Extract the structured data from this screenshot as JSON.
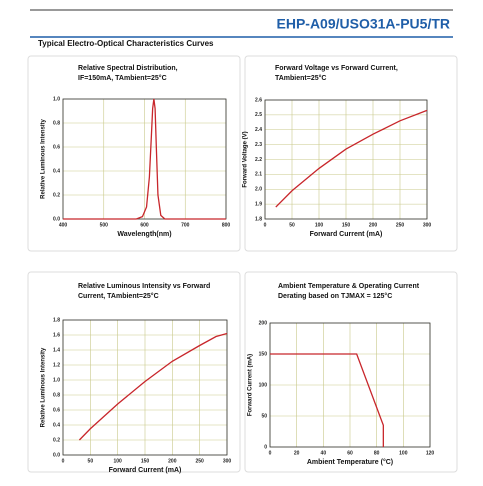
{
  "header": {
    "title": "EHP-A09/USO31A-PU5/TR",
    "section": "Typical Electro-Optical Characteristics Curves"
  },
  "chart_data": [
    {
      "type": "line",
      "title": "Relative Spectral Distribution,",
      "subtitle": "IF=150mA, TAmbient=25°C",
      "xlabel": "Wavelength(nm)",
      "ylabel": "Relative Luminous Intensity",
      "x": [
        400,
        580,
        595,
        605,
        612,
        617,
        620,
        623,
        626,
        629,
        633,
        640,
        650,
        800
      ],
      "series": [
        {
          "color": "#c8262b",
          "values": [
            0,
            0,
            0.02,
            0.1,
            0.35,
            0.7,
            0.92,
            1.0,
            0.92,
            0.6,
            0.2,
            0.03,
            0,
            0
          ]
        }
      ],
      "xlim": [
        400,
        800
      ],
      "xticks": [
        400,
        500,
        600,
        700,
        800
      ],
      "ylim": [
        0,
        1
      ],
      "yticks": [
        {
          "value": 0,
          "label": "0.0"
        },
        0.2,
        0.4,
        0.6,
        0.8,
        {
          "value": 1,
          "label": "1.0"
        }
      ],
      "grid": true
    },
    {
      "type": "line",
      "title": "Forward Voltage vs Forward Current,",
      "subtitle": "TAmbient=25°C",
      "xlabel": "Forward Current (mA)",
      "ylabel": "Forward Voltage (V)",
      "x": [
        20,
        50,
        100,
        150,
        200,
        250,
        300
      ],
      "series": [
        {
          "color": "#c8262b",
          "values": [
            1.88,
            1.99,
            2.14,
            2.27,
            2.37,
            2.46,
            2.53
          ]
        }
      ],
      "xlim": [
        0,
        300
      ],
      "xticks": [
        0,
        50,
        100,
        150,
        200,
        250,
        300
      ],
      "ylim": [
        1.8,
        2.6
      ],
      "yticks": [
        1.8,
        1.9,
        {
          "value": 2,
          "label": "2.0"
        },
        2.1,
        2.2,
        2.3,
        2.4,
        2.5,
        2.6
      ],
      "grid": true
    },
    {
      "type": "line",
      "title": "Relative Luminous Intensity vs Forward",
      "subtitle": "Current, TAmbient=25°C",
      "xlabel": "Forward Current (mA)",
      "ylabel": "Relative Luminous Intensity",
      "x": [
        30,
        50,
        100,
        150,
        200,
        250,
        280,
        300
      ],
      "series": [
        {
          "color": "#c8262b",
          "values": [
            0.2,
            0.35,
            0.68,
            0.98,
            1.25,
            1.46,
            1.58,
            1.62
          ]
        }
      ],
      "xlim": [
        0,
        300
      ],
      "xticks": [
        0,
        50,
        100,
        150,
        200,
        250,
        300
      ],
      "ylim": [
        0,
        1.8
      ],
      "yticks": [
        {
          "value": 0,
          "label": "0.0"
        },
        0.2,
        0.4,
        0.6,
        0.8,
        {
          "value": 1,
          "label": "1.0"
        },
        1.2,
        1.4,
        1.6,
        1.8
      ],
      "grid": true
    },
    {
      "type": "line",
      "title": "Ambient Temperature & Operating Current",
      "subtitle": "Derating based on TJMAX = 125°C",
      "xlabel": "Ambient Temperature (°C)",
      "ylabel": "Forward Current (mA)",
      "x": [
        0,
        65,
        85,
        85
      ],
      "series": [
        {
          "color": "#c8262b",
          "values": [
            150,
            150,
            35,
            0
          ]
        }
      ],
      "xlim": [
        0,
        120
      ],
      "xticks": [
        0,
        20,
        40,
        60,
        80,
        100,
        120
      ],
      "ylim": [
        0,
        200
      ],
      "yticks": [
        0,
        50,
        100,
        150,
        200
      ],
      "grid": true
    }
  ]
}
